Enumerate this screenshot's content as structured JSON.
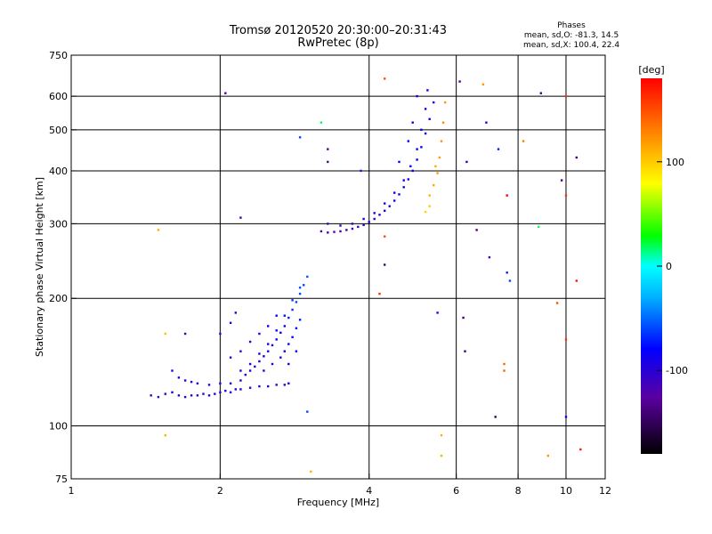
{
  "chart_data": {
    "type": "scatter",
    "title": "Tromsø 20120520 20:30:00–20:31:43",
    "subtitle": "RwPretec (8p)",
    "xlabel": "Frequency [MHz]",
    "ylabel": "Stationary phase Virtual Height [km]",
    "xscale": "log",
    "yscale": "log",
    "xlim": [
      1,
      12
    ],
    "ylim": [
      75,
      750
    ],
    "x_ticks": [
      1,
      2,
      4,
      6,
      8,
      10,
      12
    ],
    "x_tick_labels": [
      "1",
      "2",
      "4",
      "6",
      "8",
      "10",
      "12"
    ],
    "y_ticks": [
      75,
      100,
      200,
      300,
      400,
      500,
      600,
      750
    ],
    "y_tick_labels": [
      "75",
      "100",
      "200",
      "300",
      "400",
      "500",
      "600",
      "750"
    ],
    "x_gridlines": [
      2,
      4,
      6,
      8,
      10
    ],
    "y_gridlines": [
      100,
      200,
      300,
      400,
      500,
      600
    ],
    "grid": true,
    "legend": {
      "title": "Phases",
      "line1": "mean, sd,O: -81.3, 14.5",
      "line2": "mean, sd,X: 100.4, 22.4",
      "placement": "top-right"
    },
    "colorbar": {
      "label": "[deg]",
      "ticks": [
        100,
        0,
        -100
      ],
      "tick_labels": [
        "100",
        "0",
        "-100"
      ],
      "range": [
        -180,
        180
      ]
    },
    "series": [
      {
        "points": [
          [
            1.45,
            118,
            -105
          ],
          [
            1.5,
            117,
            -110
          ],
          [
            1.55,
            119,
            -100
          ],
          [
            1.6,
            120,
            -95
          ],
          [
            1.65,
            118,
            -102
          ],
          [
            1.7,
            117,
            -108
          ],
          [
            1.75,
            118,
            -100
          ],
          [
            1.8,
            118,
            -98
          ],
          [
            1.85,
            119,
            -104
          ],
          [
            1.9,
            118,
            -100
          ],
          [
            1.95,
            119,
            -96
          ],
          [
            2.0,
            120,
            -102
          ],
          [
            2.05,
            121,
            -100
          ],
          [
            2.1,
            120,
            -98
          ],
          [
            2.15,
            122,
            -104
          ],
          [
            2.2,
            122,
            -100
          ],
          [
            2.3,
            123,
            -96
          ],
          [
            2.4,
            124,
            -100
          ],
          [
            2.5,
            124,
            -102
          ],
          [
            2.6,
            125,
            -98
          ],
          [
            2.7,
            125,
            -100
          ],
          [
            2.75,
            126,
            -96
          ],
          [
            1.6,
            135,
            -100
          ],
          [
            1.65,
            130,
            -98
          ],
          [
            1.7,
            128,
            -102
          ],
          [
            1.75,
            127,
            -100
          ],
          [
            1.8,
            126,
            -96
          ],
          [
            1.9,
            125,
            -100
          ],
          [
            2.0,
            126,
            -98
          ],
          [
            2.1,
            126,
            -100
          ],
          [
            2.2,
            128,
            -95
          ],
          [
            2.25,
            132,
            -100
          ],
          [
            2.3,
            135,
            -92
          ],
          [
            2.35,
            138,
            -96
          ],
          [
            2.4,
            142,
            -90
          ],
          [
            2.45,
            146,
            -88
          ],
          [
            2.5,
            150,
            -92
          ],
          [
            2.55,
            155,
            -86
          ],
          [
            2.6,
            160,
            -84
          ],
          [
            2.65,
            166,
            -80
          ],
          [
            2.7,
            172,
            -76
          ],
          [
            2.75,
            180,
            -70
          ],
          [
            2.8,
            188,
            -66
          ],
          [
            2.85,
            196,
            -60
          ],
          [
            2.9,
            205,
            -58
          ],
          [
            2.95,
            215,
            -60
          ],
          [
            3.0,
            225,
            -55
          ],
          [
            2.1,
            145,
            -105
          ],
          [
            2.2,
            150,
            -100
          ],
          [
            2.3,
            158,
            -96
          ],
          [
            2.4,
            165,
            -90
          ],
          [
            2.5,
            172,
            -85
          ],
          [
            2.6,
            182,
            -78
          ],
          [
            2.2,
            135,
            -98
          ],
          [
            2.3,
            140,
            -94
          ],
          [
            2.4,
            148,
            -92
          ],
          [
            2.5,
            156,
            -88
          ],
          [
            2.6,
            168,
            -82
          ],
          [
            2.7,
            182,
            -74
          ],
          [
            2.8,
            198,
            -64
          ],
          [
            2.9,
            212,
            -56
          ],
          [
            2.0,
            165,
            -100
          ],
          [
            2.1,
            175,
            -98
          ],
          [
            2.15,
            185,
            -102
          ],
          [
            2.7,
            150,
            -88
          ],
          [
            2.75,
            156,
            -84
          ],
          [
            2.8,
            162,
            -82
          ],
          [
            2.85,
            170,
            -78
          ],
          [
            2.9,
            178,
            -72
          ],
          [
            2.45,
            135,
            -95
          ],
          [
            2.55,
            140,
            -92
          ],
          [
            2.65,
            145,
            -88
          ],
          [
            2.75,
            140,
            -90
          ],
          [
            2.85,
            150,
            -84
          ],
          [
            3.2,
            288,
            -120
          ],
          [
            3.3,
            286,
            -118
          ],
          [
            3.4,
            287,
            -115
          ],
          [
            3.5,
            288,
            -120
          ],
          [
            3.6,
            290,
            -112
          ],
          [
            3.7,
            292,
            -110
          ],
          [
            3.8,
            295,
            -108
          ],
          [
            3.9,
            298,
            -104
          ],
          [
            4.0,
            303,
            -100
          ],
          [
            4.1,
            308,
            -98
          ],
          [
            4.2,
            315,
            -95
          ],
          [
            4.3,
            322,
            -92
          ],
          [
            4.4,
            330,
            -90
          ],
          [
            4.5,
            340,
            -88
          ],
          [
            4.6,
            352,
            -86
          ],
          [
            4.7,
            366,
            -84
          ],
          [
            4.8,
            382,
            -82
          ],
          [
            4.9,
            400,
            -80
          ],
          [
            5.0,
            425,
            -80
          ],
          [
            5.1,
            455,
            -82
          ],
          [
            5.2,
            490,
            -84
          ],
          [
            5.3,
            530,
            -86
          ],
          [
            5.4,
            580,
            -90
          ],
          [
            3.3,
            300,
            -105
          ],
          [
            3.5,
            297,
            -108
          ],
          [
            3.7,
            300,
            -100
          ],
          [
            3.9,
            308,
            -96
          ],
          [
            4.1,
            318,
            -92
          ],
          [
            4.3,
            335,
            -88
          ],
          [
            4.5,
            355,
            -86
          ],
          [
            4.7,
            380,
            -84
          ],
          [
            4.85,
            410,
            -82
          ],
          [
            5.0,
            450,
            -80
          ],
          [
            5.1,
            500,
            -82
          ],
          [
            5.2,
            560,
            -85
          ],
          [
            5.25,
            620,
            -88
          ],
          [
            4.6,
            420,
            -82
          ],
          [
            4.8,
            470,
            -80
          ],
          [
            4.9,
            520,
            -82
          ],
          [
            5.0,
            600,
            -84
          ],
          [
            5.3,
            350,
            110
          ],
          [
            5.4,
            370,
            115
          ],
          [
            5.5,
            395,
            120
          ],
          [
            5.55,
            430,
            118
          ],
          [
            5.6,
            470,
            122
          ],
          [
            5.65,
            520,
            125
          ],
          [
            5.7,
            580,
            120
          ],
          [
            5.3,
            330,
            100
          ],
          [
            5.2,
            320,
            95
          ],
          [
            5.45,
            410,
            112
          ],
          [
            1.5,
            290,
            110
          ],
          [
            1.55,
            165,
            105
          ],
          [
            1.55,
            95,
            110
          ],
          [
            1.7,
            165,
            -110
          ],
          [
            2.05,
            610,
            -120
          ],
          [
            2.2,
            310,
            -112
          ],
          [
            2.9,
            480,
            -60
          ],
          [
            3.0,
            108,
            -60
          ],
          [
            3.05,
            78,
            110
          ],
          [
            3.2,
            520,
            20
          ],
          [
            3.3,
            450,
            -130
          ],
          [
            3.3,
            420,
            -130
          ],
          [
            3.85,
            400,
            -70
          ],
          [
            4.2,
            205,
            160
          ],
          [
            4.3,
            280,
            150
          ],
          [
            4.3,
            660,
            150
          ],
          [
            4.3,
            240,
            -140
          ],
          [
            5.5,
            185,
            -95
          ],
          [
            5.6,
            95,
            110
          ],
          [
            5.6,
            85,
            110
          ],
          [
            6.1,
            650,
            -130
          ],
          [
            6.2,
            180,
            -140
          ],
          [
            6.25,
            150,
            -140
          ],
          [
            6.3,
            420,
            -100
          ],
          [
            6.6,
            290,
            -140
          ],
          [
            6.8,
            640,
            120
          ],
          [
            6.9,
            520,
            -100
          ],
          [
            7.0,
            250,
            -120
          ],
          [
            7.2,
            105,
            -150
          ],
          [
            7.3,
            450,
            -70
          ],
          [
            7.5,
            140,
            140
          ],
          [
            7.5,
            135,
            140
          ],
          [
            7.6,
            230,
            -70
          ],
          [
            7.7,
            220,
            -60
          ],
          [
            7.6,
            350,
            180
          ],
          [
            8.2,
            470,
            130
          ],
          [
            8.8,
            295,
            20
          ],
          [
            8.9,
            610,
            -140
          ],
          [
            9.2,
            85,
            120
          ],
          [
            9.6,
            195,
            150
          ],
          [
            9.8,
            380,
            -140
          ],
          [
            10.0,
            600,
            160
          ],
          [
            10.0,
            350,
            160
          ],
          [
            10.0,
            105,
            -80
          ],
          [
            10.0,
            160,
            160
          ],
          [
            10.5,
            430,
            -140
          ],
          [
            10.5,
            220,
            170
          ],
          [
            10.7,
            88,
            170
          ]
        ]
      }
    ]
  }
}
